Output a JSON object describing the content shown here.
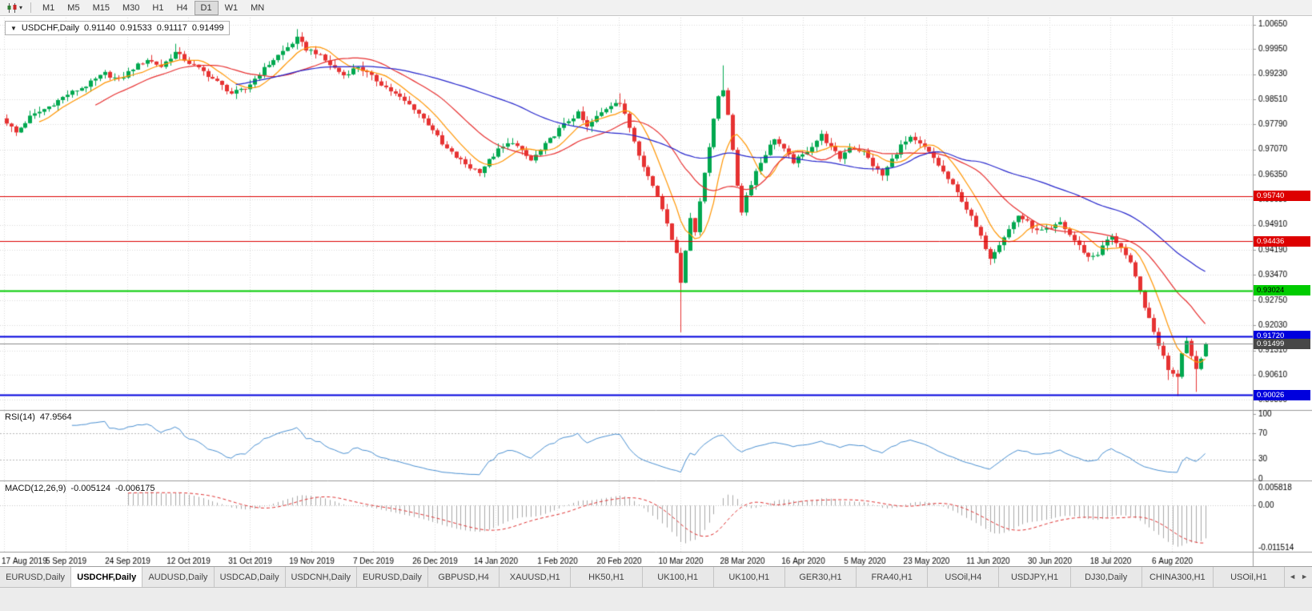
{
  "toolbar": {
    "timeframes": [
      "M1",
      "M5",
      "M15",
      "M30",
      "H1",
      "H4",
      "D1",
      "W1",
      "MN"
    ],
    "active_timeframe": "D1"
  },
  "icons": {
    "chart_type": "candlestick-chart-icon",
    "dropdown": "chevron-down-icon",
    "tabs_scroll_left": "arrow-left-icon",
    "tabs_scroll_right": "arrow-right-icon"
  },
  "chart": {
    "title": "USDCHF,Daily",
    "ohlc": {
      "open": "0.91140",
      "high": "0.91533",
      "low": "0.91117",
      "close": "0.91499"
    }
  },
  "rsi": {
    "label": "RSI(14)",
    "value": "47.9564"
  },
  "macd": {
    "label": "MACD(12,26,9)",
    "value": "-0.005124",
    "signal": "-0.006175"
  },
  "tabs": {
    "items": [
      {
        "label": "EURUSD,Daily",
        "active": false
      },
      {
        "label": "USDCHF,Daily",
        "active": true
      },
      {
        "label": "AUDUSD,Daily",
        "active": false
      },
      {
        "label": "USDCAD,Daily",
        "active": false
      },
      {
        "label": "USDCNH,Daily",
        "active": false
      },
      {
        "label": "EURUSD,Daily",
        "active": false
      },
      {
        "label": "GBPUSD,H4",
        "active": false
      },
      {
        "label": "XAUUSD,H1",
        "active": false
      },
      {
        "label": "HK50,H1",
        "active": false
      },
      {
        "label": "UK100,H1",
        "active": false
      },
      {
        "label": "UK100,H1",
        "active": false
      },
      {
        "label": "GER30,H1",
        "active": false
      },
      {
        "label": "FRA40,H1",
        "active": false
      },
      {
        "label": "USOil,H4",
        "active": false
      },
      {
        "label": "USDJPY,H1",
        "active": false
      },
      {
        "label": "DJ30,Daily",
        "active": false
      },
      {
        "label": "CHINA300,H1",
        "active": false
      },
      {
        "label": "USOil,H1",
        "active": false
      }
    ],
    "scroll_left": "◄",
    "scroll_right": "►"
  },
  "chart_data": {
    "type": "candlestick",
    "symbol": "USDCHF",
    "timeframe": "Daily",
    "title": "USDCHF,Daily",
    "bars": 257,
    "price_range": [
      0.896,
      1.0085
    ],
    "price_ticks": [
      "1.00650",
      "0.99950",
      "0.99230",
      "0.98510",
      "0.97790",
      "0.97070",
      "0.96350",
      "0.95630",
      "0.94910",
      "0.94190",
      "0.93470",
      "0.92750",
      "0.92030",
      "0.91310",
      "0.90610",
      "0.89890"
    ],
    "date_labels": [
      "17 Aug 2019",
      "5 Sep 2019",
      "24 Sep 2019",
      "12 Oct 2019",
      "31 Oct 2019",
      "19 Nov 2019",
      "7 Dec 2019",
      "26 Dec 2019",
      "14 Jan 2020",
      "1 Feb 2020",
      "20 Feb 2020",
      "10 Mar 2020",
      "28 Mar 2020",
      "16 Apr 2020",
      "5 May 2020",
      "23 May 2020",
      "11 Jun 2020",
      "30 Jun 2020",
      "18 Jul 2020",
      "6 Aug 2020"
    ],
    "close_anchors": [
      [
        0,
        0.9785
      ],
      [
        2,
        0.9755
      ],
      [
        5,
        0.98
      ],
      [
        9,
        0.983
      ],
      [
        13,
        0.9865
      ],
      [
        17,
        0.989
      ],
      [
        21,
        0.9925
      ],
      [
        24,
        0.9905
      ],
      [
        27,
        0.994
      ],
      [
        30,
        0.9965
      ],
      [
        33,
        0.9945
      ],
      [
        36,
        0.9985
      ],
      [
        39,
        0.9955
      ],
      [
        42,
        0.993
      ],
      [
        45,
        0.99
      ],
      [
        48,
        0.9868
      ],
      [
        51,
        0.988
      ],
      [
        54,
        0.9925
      ],
      [
        57,
        0.9965
      ],
      [
        60,
        1.0
      ],
      [
        62,
        1.0025
      ],
      [
        64,
        0.9995
      ],
      [
        66,
        0.9985
      ],
      [
        69,
        0.995
      ],
      [
        72,
        0.992
      ],
      [
        75,
        0.9945
      ],
      [
        78,
        0.9915
      ],
      [
        81,
        0.9885
      ],
      [
        84,
        0.9855
      ],
      [
        87,
        0.9825
      ],
      [
        89,
        0.9795
      ],
      [
        91,
        0.9765
      ],
      [
        93,
        0.972
      ],
      [
        96,
        0.9685
      ],
      [
        99,
        0.9655
      ],
      [
        101,
        0.9645
      ],
      [
        103,
        0.9675
      ],
      [
        105,
        0.9705
      ],
      [
        108,
        0.973
      ],
      [
        110,
        0.97
      ],
      [
        112,
        0.9675
      ],
      [
        114,
        0.9705
      ],
      [
        116,
        0.9735
      ],
      [
        118,
        0.9765
      ],
      [
        120,
        0.979
      ],
      [
        122,
        0.981
      ],
      [
        124,
        0.977
      ],
      [
        126,
        0.98
      ],
      [
        128,
        0.9825
      ],
      [
        130,
        0.9845
      ],
      [
        131,
        0.984
      ],
      [
        133,
        0.977
      ],
      [
        135,
        0.9695
      ],
      [
        137,
        0.963
      ],
      [
        139,
        0.9575
      ],
      [
        141,
        0.95
      ],
      [
        143,
        0.9405
      ],
      [
        144,
        0.933
      ],
      [
        145,
        0.942
      ],
      [
        146,
        0.951
      ],
      [
        147,
        0.947
      ],
      [
        148,
        0.956
      ],
      [
        149,
        0.9645
      ],
      [
        150,
        0.9715
      ],
      [
        151,
        0.979
      ],
      [
        152,
        0.986
      ],
      [
        153,
        0.988
      ],
      [
        154,
        0.981
      ],
      [
        155,
        0.97
      ],
      [
        156,
        0.9605
      ],
      [
        157,
        0.953
      ],
      [
        158,
        0.9575
      ],
      [
        160,
        0.9645
      ],
      [
        162,
        0.9695
      ],
      [
        164,
        0.974
      ],
      [
        166,
        0.9705
      ],
      [
        168,
        0.9672
      ],
      [
        170,
        0.969
      ],
      [
        172,
        0.9718
      ],
      [
        174,
        0.9748
      ],
      [
        176,
        0.9712
      ],
      [
        178,
        0.9682
      ],
      [
        180,
        0.9715
      ],
      [
        183,
        0.97
      ],
      [
        185,
        0.9662
      ],
      [
        187,
        0.9632
      ],
      [
        189,
        0.9678
      ],
      [
        191,
        0.9718
      ],
      [
        193,
        0.9738
      ],
      [
        196,
        0.9712
      ],
      [
        198,
        0.9682
      ],
      [
        200,
        0.9642
      ],
      [
        202,
        0.9602
      ],
      [
        204,
        0.9562
      ],
      [
        206,
        0.9512
      ],
      [
        208,
        0.9455
      ],
      [
        210,
        0.9398
      ],
      [
        212,
        0.9438
      ],
      [
        214,
        0.9478
      ],
      [
        216,
        0.9518
      ],
      [
        218,
        0.9498
      ],
      [
        220,
        0.9472
      ],
      [
        223,
        0.9478
      ],
      [
        225,
        0.9498
      ],
      [
        227,
        0.9462
      ],
      [
        229,
        0.943
      ],
      [
        231,
        0.9398
      ],
      [
        233,
        0.9408
      ],
      [
        235,
        0.9448
      ],
      [
        236,
        0.9455
      ],
      [
        238,
        0.9428
      ],
      [
        240,
        0.9378
      ],
      [
        242,
        0.9298
      ],
      [
        244,
        0.9218
      ],
      [
        246,
        0.9148
      ],
      [
        248,
        0.9078
      ],
      [
        250,
        0.9058
      ],
      [
        251,
        0.9128
      ],
      [
        252,
        0.9158
      ],
      [
        253,
        0.9118
      ],
      [
        254,
        0.9078
      ],
      [
        255,
        0.9108
      ],
      [
        256,
        0.91499
      ]
    ],
    "noise": 0.0012,
    "wick_noise": 0.0016,
    "overrides": {
      "36": {
        "h": 1.001
      },
      "62": {
        "h": 1.0052
      },
      "101": {
        "l": 0.963
      },
      "131": {
        "h": 0.9868
      },
      "144": {
        "l": 0.9183
      },
      "153": {
        "h": 0.9948
      },
      "210": {
        "l": 0.9376
      },
      "248": {
        "l": 0.9046
      },
      "250": {
        "l": 0.9
      },
      "254": {
        "l": 0.9012
      },
      "256": {
        "o": 0.9114,
        "h": 0.91533,
        "l": 0.91117,
        "c": 0.91499
      }
    },
    "candle_colors": {
      "bull": "#00a84f",
      "bear": "#e63232"
    },
    "moving_averages": [
      {
        "period": 8,
        "color": "#ff9500"
      },
      {
        "period": 20,
        "color": "#e83030"
      },
      {
        "period": 50,
        "color": "#2626cc"
      }
    ],
    "horizontal_levels": [
      {
        "label": "0.95740",
        "value": 0.9574,
        "color": "#dd0000",
        "text_color": "#ffffff",
        "line_width": 1
      },
      {
        "label": "0.94436",
        "value": 0.94436,
        "color": "#dd0000",
        "text_color": "#ffffff",
        "line_width": 1
      },
      {
        "label": "0.93024",
        "value": 0.93024,
        "color": "#00cc00",
        "text_color": "#000000",
        "line_width": 2
      },
      {
        "label": "0.91720",
        "value": 0.9172,
        "color": "#0000dd",
        "text_color": "#ffffff",
        "line_width": 2
      },
      {
        "label": "0.90026",
        "value": 0.90026,
        "color": "#0000dd",
        "text_color": "#ffffff",
        "line_width": 2
      }
    ],
    "current_price": {
      "label": "0.91499",
      "value": 0.91499,
      "box_color": "#474747",
      "line_color": "#8a8a8a"
    },
    "indicators": {
      "rsi": {
        "period": 14,
        "value": 47.9564,
        "range": [
          0,
          100
        ],
        "levels": [
          "100",
          "70",
          "30",
          "0"
        ],
        "color": "#4a90d2"
      },
      "macd": {
        "fast": 12,
        "slow": 26,
        "signal": 9,
        "value": -0.005124,
        "signal_value": -0.006175,
        "scale_max": 0.0062,
        "scale_min": -0.0118,
        "axis_labels": [
          "0.005818",
          "0.00",
          "-0.011514"
        ],
        "hist_color": "#a9a9a9",
        "signal_color": "#e03131"
      }
    },
    "grid_color": "#dadada",
    "legend_position": "none",
    "grid": true
  }
}
